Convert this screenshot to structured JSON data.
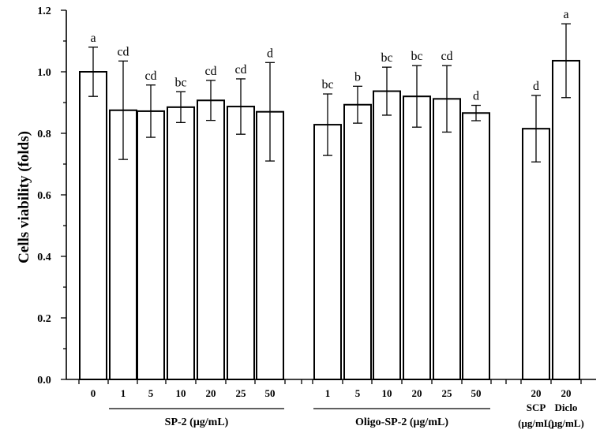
{
  "chart_data": {
    "type": "bar",
    "ylabel": "Cells viability (folds)",
    "ylim": [
      0,
      1.2
    ],
    "yticks": [
      "0.0",
      "0.2",
      "0.4",
      "0.6",
      "0.8",
      "1.0",
      "1.2"
    ],
    "error_bars": true,
    "bars": [
      {
        "label": "0",
        "value": 1.0,
        "err": 0.08,
        "sig": "a"
      },
      {
        "label": "1",
        "value": 0.875,
        "err": 0.16,
        "sig": "cd"
      },
      {
        "label": "5",
        "value": 0.872,
        "err": 0.085,
        "sig": "cd"
      },
      {
        "label": "10",
        "value": 0.885,
        "err": 0.05,
        "sig": "bc"
      },
      {
        "label": "20",
        "value": 0.907,
        "err": 0.065,
        "sig": "cd"
      },
      {
        "label": "25",
        "value": 0.887,
        "err": 0.09,
        "sig": "cd"
      },
      {
        "label": "50",
        "value": 0.87,
        "err": 0.16,
        "sig": "d"
      },
      {
        "label": "1",
        "value": 0.828,
        "err": 0.1,
        "sig": "bc"
      },
      {
        "label": "5",
        "value": 0.893,
        "err": 0.06,
        "sig": "b"
      },
      {
        "label": "10",
        "value": 0.937,
        "err": 0.078,
        "sig": "bc"
      },
      {
        "label": "20",
        "value": 0.92,
        "err": 0.1,
        "sig": "bc"
      },
      {
        "label": "25",
        "value": 0.912,
        "err": 0.108,
        "sig": "cd"
      },
      {
        "label": "50",
        "value": 0.866,
        "err": 0.025,
        "sig": "d"
      },
      {
        "label": "20",
        "value": 0.815,
        "err": 0.108,
        "sig": "d"
      },
      {
        "label": "20",
        "value": 1.036,
        "err": 0.12,
        "sig": "a"
      }
    ],
    "groups": [
      {
        "label": "SP-2 (μg/mL)",
        "first": 1,
        "last": 6
      },
      {
        "label": "Oligo-SP-2 (μg/mL)",
        "first": 7,
        "last": 12
      }
    ],
    "extra_labels": [
      {
        "lines": [
          "SCP",
          "(μg/mL)"
        ],
        "bar": 13
      },
      {
        "lines": [
          "Diclo",
          "(μg/mL)"
        ],
        "bar": 14
      }
    ]
  }
}
